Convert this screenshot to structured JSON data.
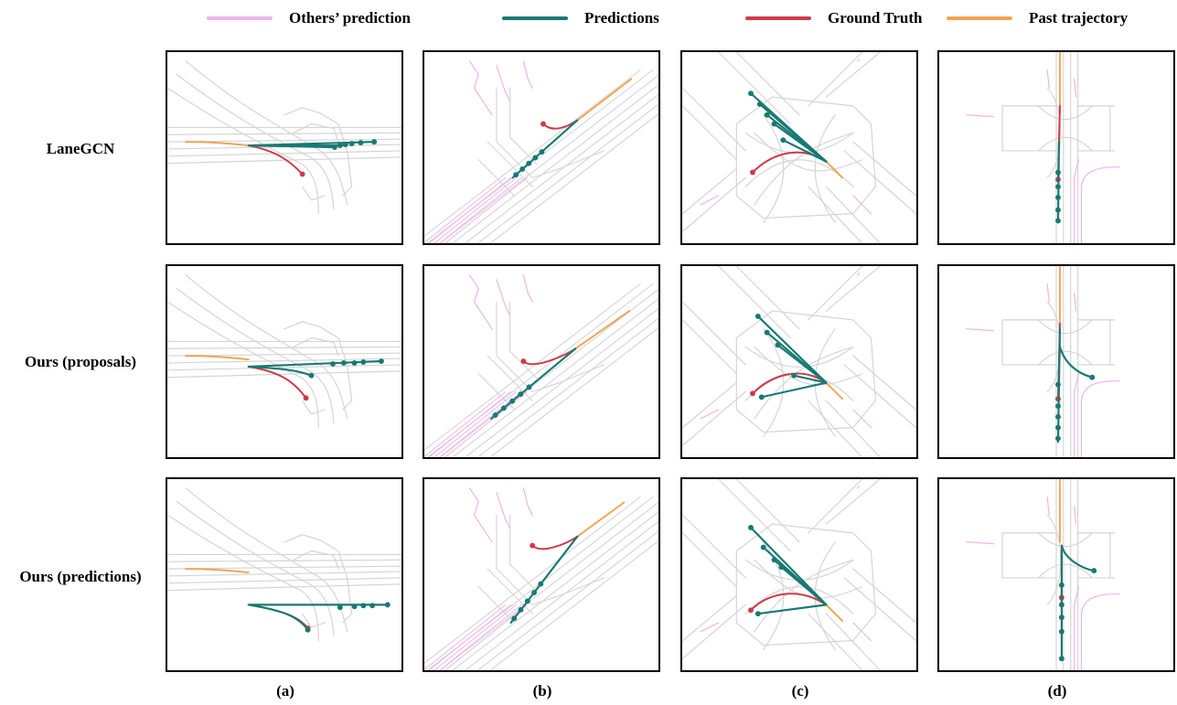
{
  "legend": [
    {
      "label": "Others’ prediction",
      "color": "#ecb4e8"
    },
    {
      "label": "Predictions",
      "color": "#177a72"
    },
    {
      "label": "Ground Truth",
      "color": "#cf3a48"
    },
    {
      "label": "Past trajectory",
      "color": "#f0a552"
    }
  ],
  "rows": [
    {
      "label": "LaneGCN"
    },
    {
      "label": "Ours (proposals)"
    },
    {
      "label": "Ours (predictions)"
    }
  ],
  "columns": [
    {
      "label": "(a)"
    },
    {
      "label": "(b)"
    },
    {
      "label": "(c)"
    },
    {
      "label": "(d)"
    }
  ],
  "colors": {
    "lane": "#d4d4d4",
    "others": "#ecb4e8",
    "prediction": "#177a72",
    "ground_truth": "#cf3a48",
    "past": "#f0a552"
  }
}
